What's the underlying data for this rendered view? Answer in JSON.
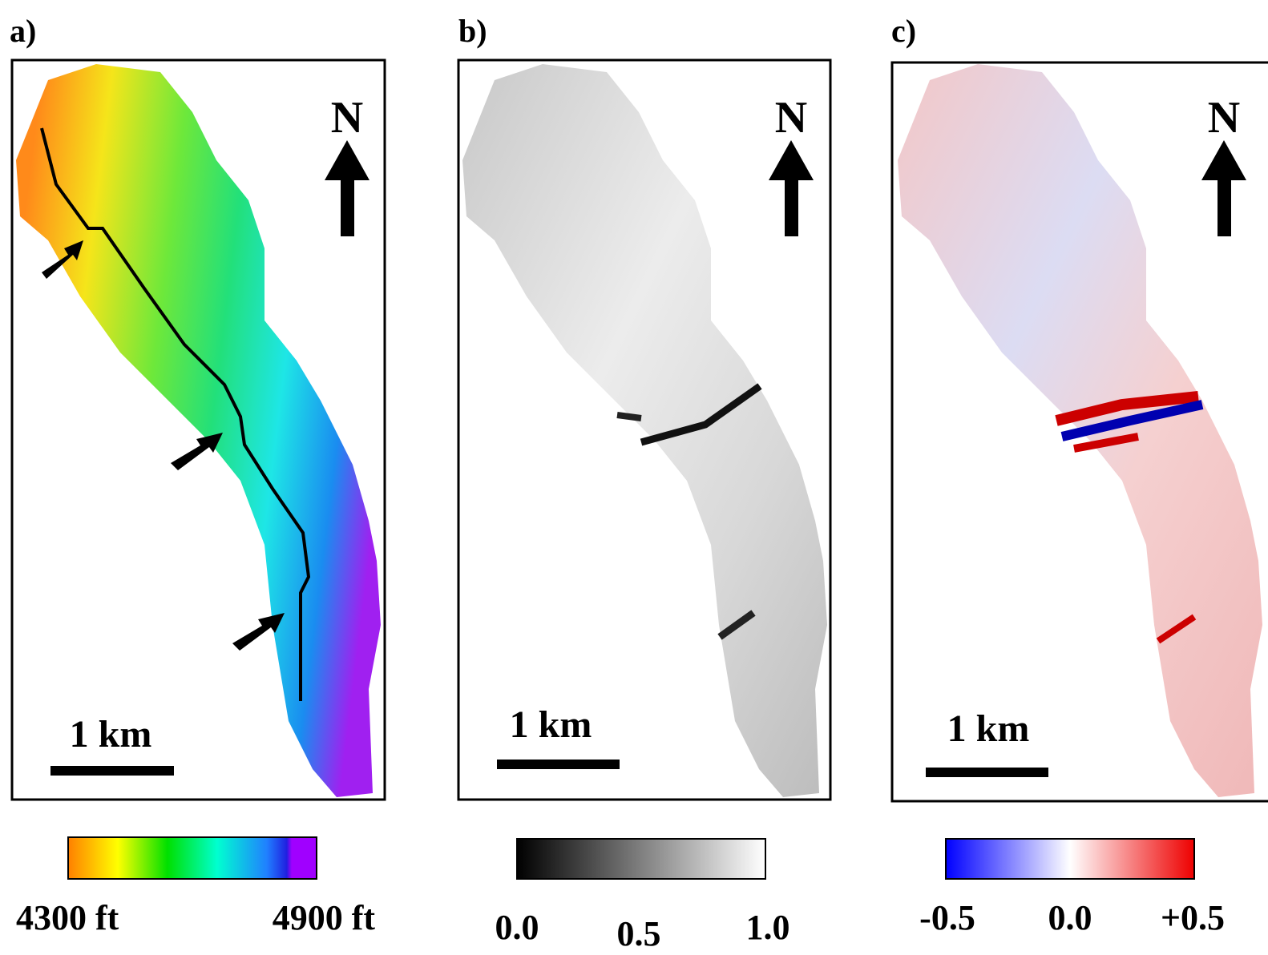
{
  "panels": [
    {
      "label": "a)",
      "north": "N",
      "scale": "1 km",
      "colorbar": {
        "labels": [
          "4300 ft",
          "4900 ft"
        ]
      }
    },
    {
      "label": "b)",
      "north": "N",
      "scale": "1 km",
      "colorbar": {
        "labels": [
          "0.0",
          "0.5",
          "1.0"
        ]
      }
    },
    {
      "label": "c)",
      "north": "N",
      "scale": "1 km",
      "colorbar": {
        "labels": [
          "-0.5",
          "0.0",
          "+0.5"
        ]
      }
    }
  ]
}
